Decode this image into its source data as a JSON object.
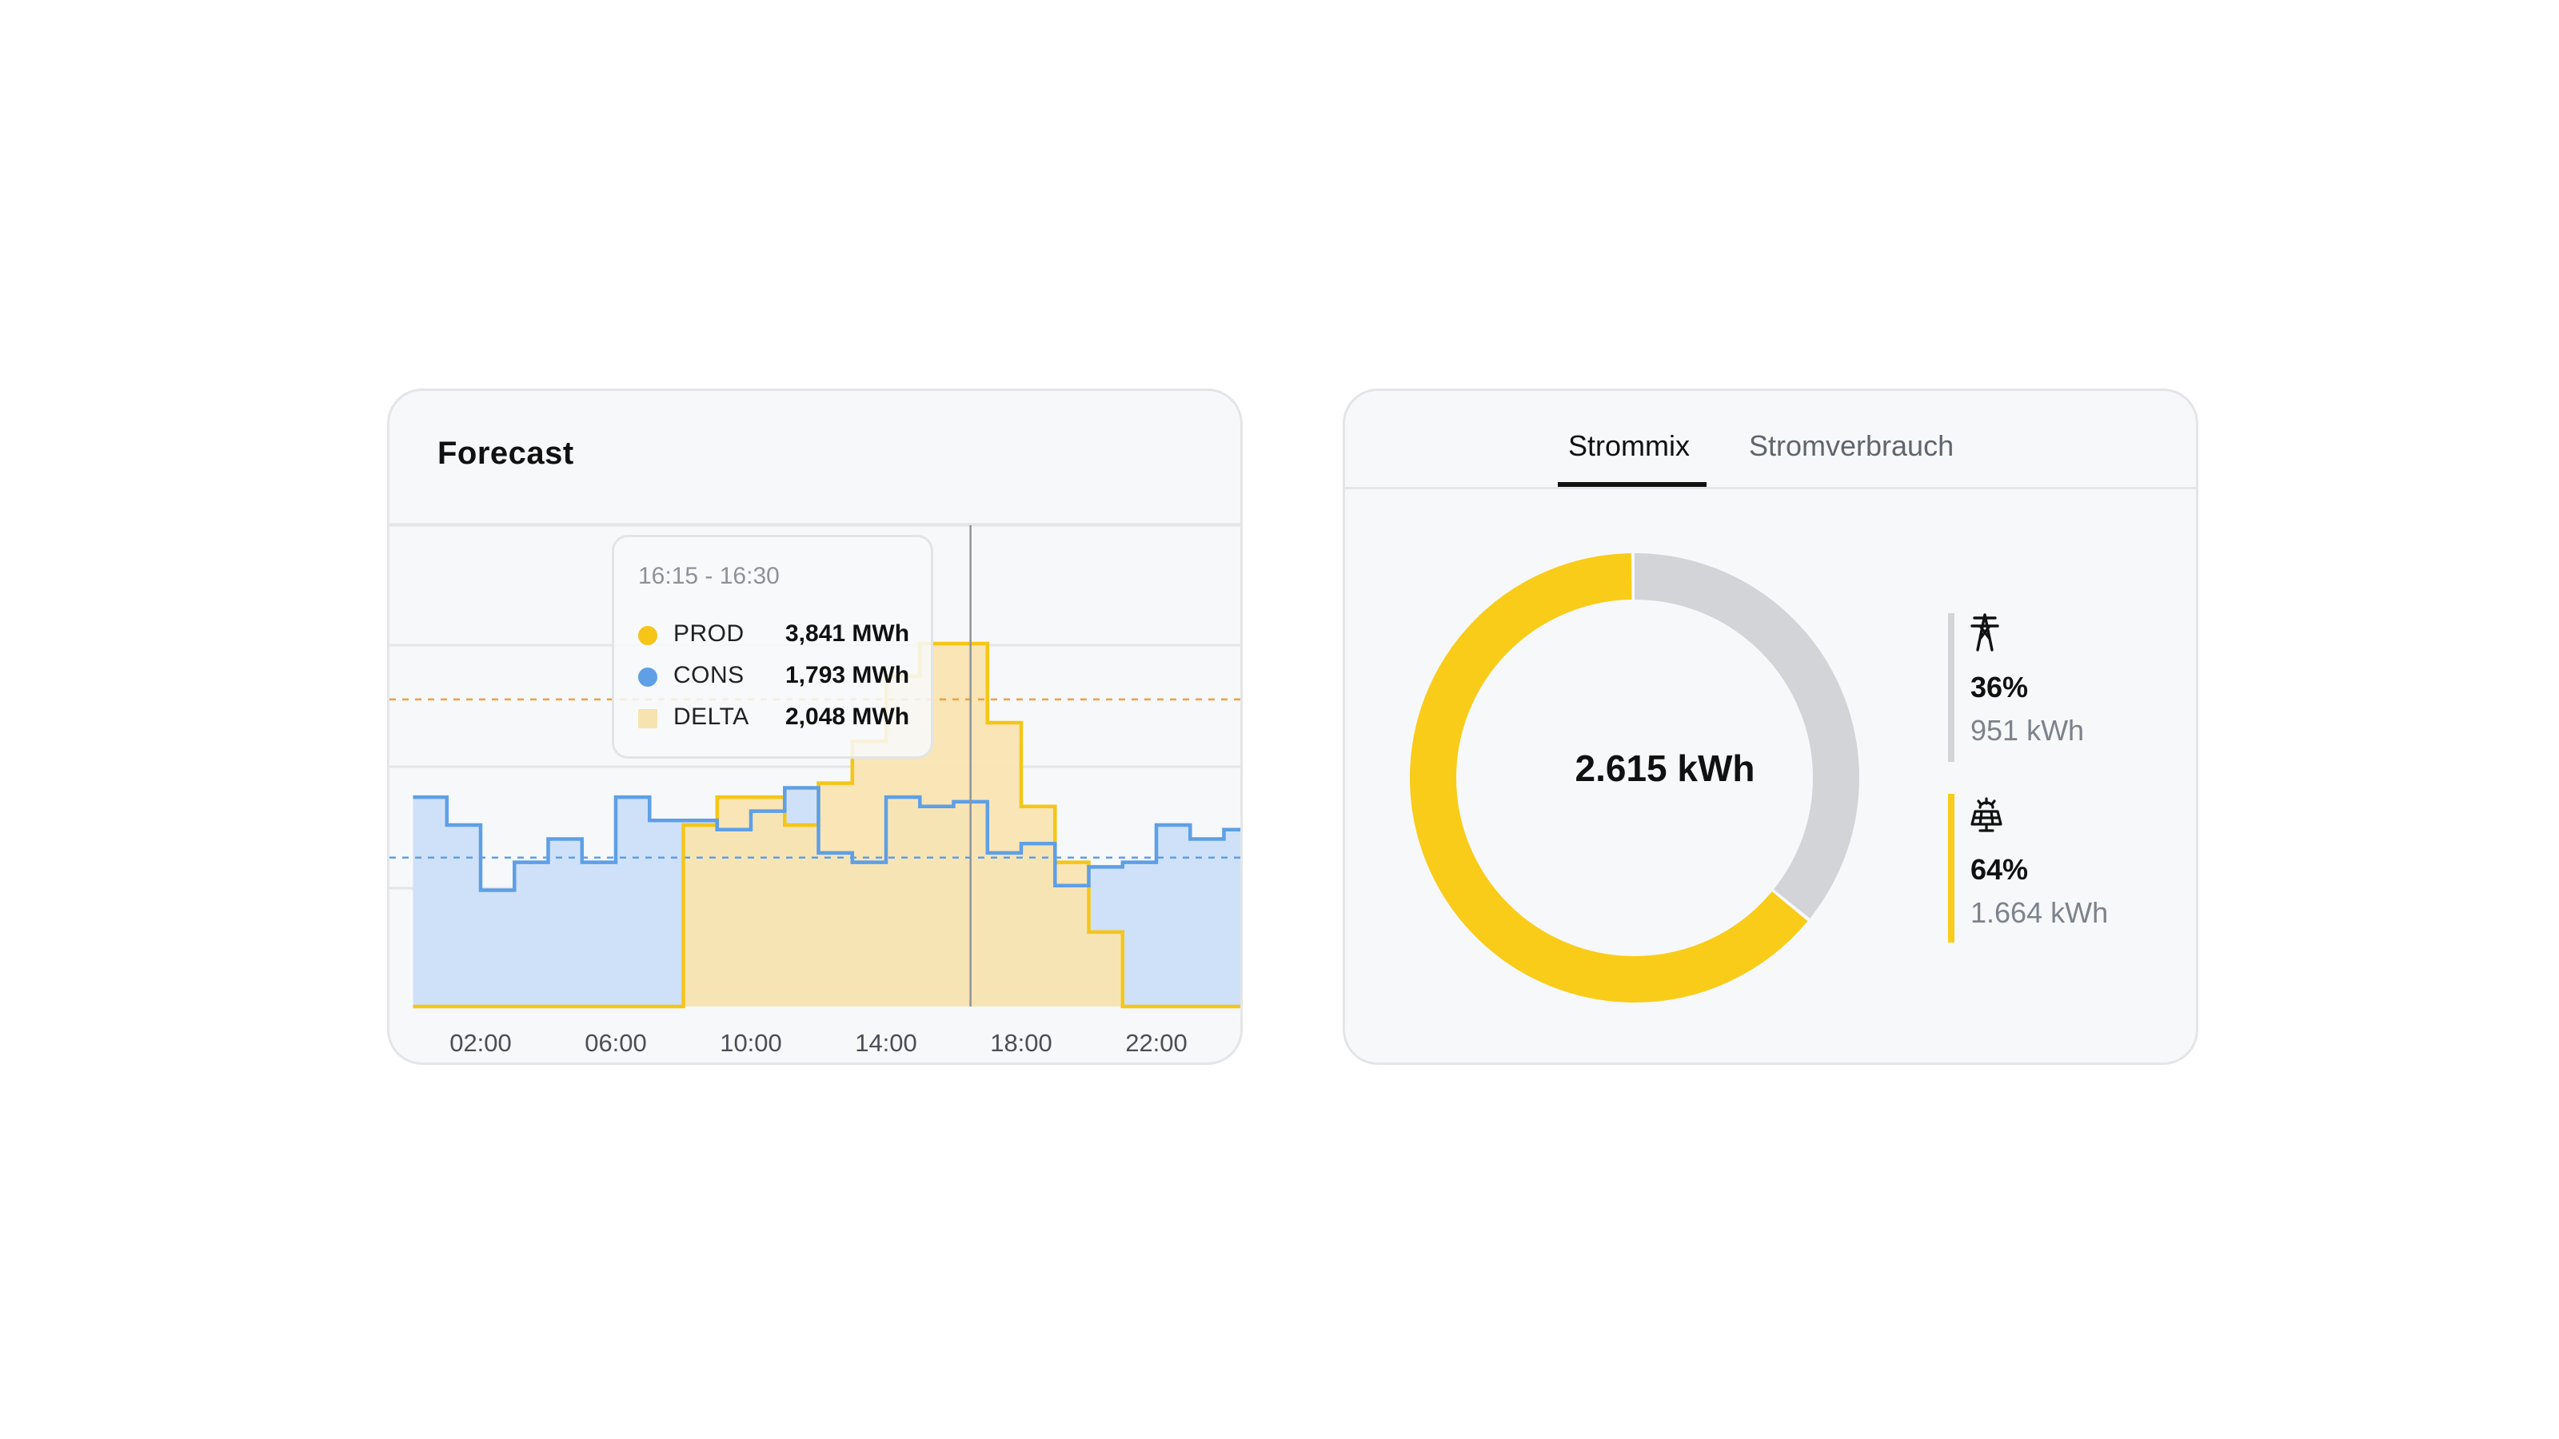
{
  "forecast": {
    "title": "Forecast",
    "tooltip": {
      "time": "16:15 - 16:30",
      "rows": [
        {
          "label": "PROD",
          "value": "3,841 MWh",
          "color": "#f5c518",
          "shape": "dot"
        },
        {
          "label": "CONS",
          "value": "1,793 MWh",
          "color": "#5e9fe6",
          "shape": "dot"
        },
        {
          "label": "DELTA",
          "value": "2,048 MWh",
          "color": "#f7e3b0",
          "shape": "square"
        }
      ]
    },
    "chart_data": {
      "type": "line",
      "step": true,
      "x_ticks": [
        "02:00",
        "06:00",
        "10:00",
        "14:00",
        "18:00",
        "22:00"
      ],
      "x_hours": [
        0,
        1,
        2,
        3,
        4,
        5,
        6,
        7,
        8,
        9,
        10,
        11,
        12,
        13,
        14,
        15,
        16,
        17,
        18,
        19,
        20,
        21,
        22,
        23,
        24,
        25
      ],
      "series": [
        {
          "name": "PROD",
          "color": "#f5c518",
          "values": [
            0,
            0,
            0,
            0,
            0,
            0,
            0,
            0,
            3.9,
            4.5,
            4.5,
            3.9,
            4.8,
            5.7,
            7.1,
            7.8,
            7.8,
            6.1,
            4.3,
            3.1,
            1.6,
            0,
            0,
            0,
            0,
            0
          ]
        },
        {
          "name": "CONS",
          "color": "#5e9fe6",
          "values": [
            4.5,
            3.9,
            2.5,
            3.1,
            3.6,
            3.1,
            4.5,
            4.0,
            4.0,
            3.8,
            4.2,
            4.7,
            3.3,
            3.1,
            4.5,
            4.3,
            4.4,
            3.3,
            3.5,
            2.6,
            3.0,
            3.1,
            3.9,
            3.6,
            3.8,
            3.6
          ]
        }
      ],
      "reference_lines": [
        {
          "value": 6.6,
          "color": "#f0a03c"
        },
        {
          "value": 3.2,
          "color": "#5e9fe6"
        }
      ],
      "cursor_hour": 16.5,
      "ylim": [
        0,
        10
      ],
      "grid": true
    }
  },
  "mix": {
    "tabs": [
      {
        "label": "Strommix",
        "active": true
      },
      {
        "label": "Stromverbrauch",
        "active": false
      }
    ],
    "total": "2.615 kWh",
    "chart_data": {
      "type": "pie",
      "donut": true,
      "slices": [
        {
          "name": "grid",
          "percent": 36,
          "value": "951 kWh",
          "color": "#d2d4d8"
        },
        {
          "name": "solar",
          "percent": 64,
          "value": "1.664 kWh",
          "color": "#f9cc1a"
        }
      ]
    },
    "legend": [
      {
        "icon": "power-pylon-icon",
        "percent": "36%",
        "value": "951 kWh",
        "color": "#d2d4d8"
      },
      {
        "icon": "solar-panel-icon",
        "percent": "64%",
        "value": "1.664 kWh",
        "color": "#f9cc1a"
      }
    ]
  }
}
